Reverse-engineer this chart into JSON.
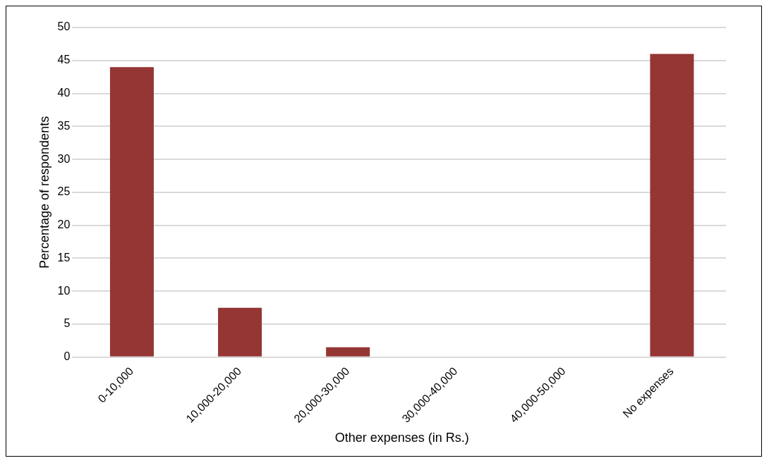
{
  "chart_data": {
    "type": "bar",
    "xlabel": "Other expenses (in Rs.)",
    "ylabel": "Percentage of respondents",
    "categories": [
      "0-10,000",
      "10,000-20,000",
      "20,000-30,000",
      "30,000-40,000",
      "40,000-50,000",
      "No expenses"
    ],
    "values": [
      44,
      7.5,
      1.5,
      0,
      0,
      46
    ],
    "color": "#943634",
    "ylim": [
      0,
      50
    ],
    "yticks": [
      0,
      5,
      10,
      15,
      20,
      25,
      30,
      35,
      40,
      45,
      50
    ],
    "grid": "y"
  }
}
